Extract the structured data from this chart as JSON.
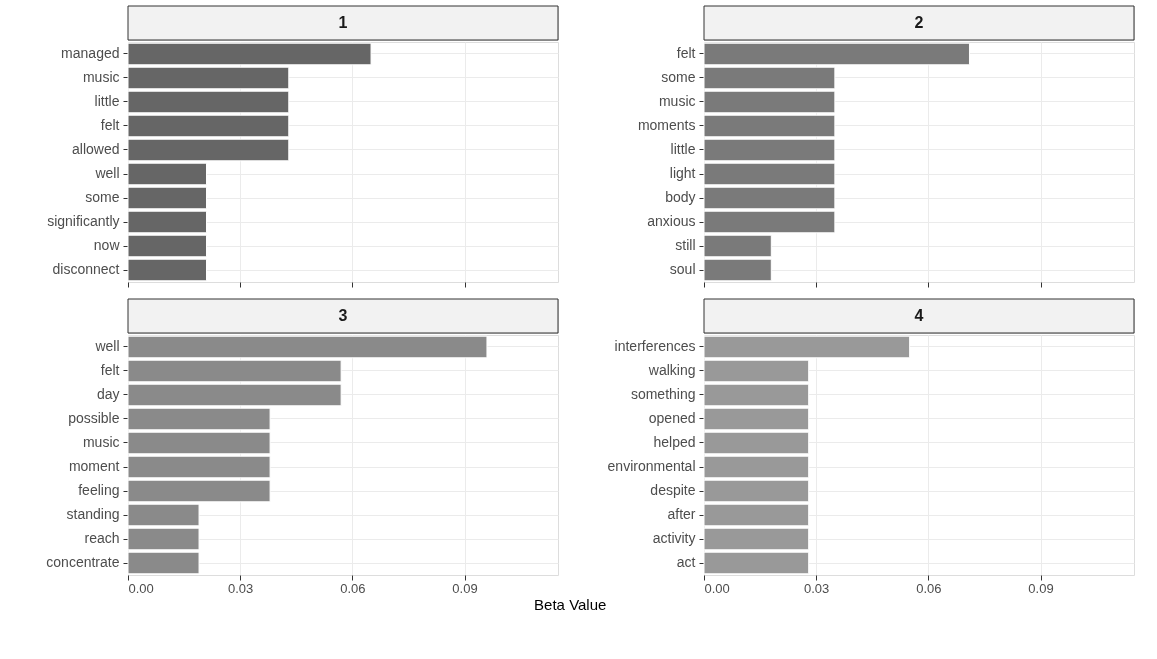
{
  "chart_data": [
    {
      "type": "bar",
      "orientation": "horizontal",
      "title": "1",
      "categories": [
        "managed",
        "music",
        "little",
        "felt",
        "allowed",
        "well",
        "some",
        "significantly",
        "now",
        "disconnect"
      ],
      "values": [
        0.065,
        0.043,
        0.043,
        0.043,
        0.043,
        0.021,
        0.021,
        0.021,
        0.021,
        0.021
      ],
      "color": "#666666",
      "xlim": [
        0,
        0.115
      ],
      "xticks": [
        0,
        0.03,
        0.06,
        0.09
      ],
      "grid": true,
      "tick_labels": "y"
    },
    {
      "type": "bar",
      "orientation": "horizontal",
      "title": "2",
      "categories": [
        "felt",
        "some",
        "music",
        "moments",
        "little",
        "light",
        "body",
        "anxious",
        "still",
        "soul"
      ],
      "values": [
        0.071,
        0.035,
        0.035,
        0.035,
        0.035,
        0.035,
        0.035,
        0.035,
        0.018,
        0.018
      ],
      "color": "#7a7a7a",
      "xlim": [
        0,
        0.115
      ],
      "xticks": [
        0,
        0.03,
        0.06,
        0.09
      ],
      "grid": true,
      "tick_labels": "y"
    },
    {
      "type": "bar",
      "orientation": "horizontal",
      "title": "3",
      "xlabel": "Beta Value",
      "categories": [
        "well",
        "felt",
        "day",
        "possible",
        "music",
        "moment",
        "feeling",
        "standing",
        "reach",
        "concentrate"
      ],
      "values": [
        0.096,
        0.057,
        0.057,
        0.038,
        0.038,
        0.038,
        0.038,
        0.019,
        0.019,
        0.019
      ],
      "color": "#8a8a8a",
      "xlim": [
        0,
        0.115
      ],
      "xticks": [
        {
          "value": 0,
          "label": "0.00"
        },
        {
          "value": 0.03,
          "label": "0.03"
        },
        {
          "value": 0.06,
          "label": "0.06"
        },
        {
          "value": 0.09,
          "label": "0.09"
        }
      ],
      "grid": true
    },
    {
      "type": "bar",
      "orientation": "horizontal",
      "title": "4",
      "categories": [
        "interferences",
        "walking",
        "something",
        "opened",
        "helped",
        "environmental",
        "despite",
        "after",
        "activity",
        "act"
      ],
      "values": [
        0.055,
        0.028,
        0.028,
        0.028,
        0.028,
        0.028,
        0.028,
        0.028,
        0.028,
        0.028
      ],
      "color": "#999999",
      "xlim": [
        0,
        0.115
      ],
      "xticks": [
        {
          "value": 0,
          "label": "0.00"
        },
        {
          "value": 0.03,
          "label": "0.03"
        },
        {
          "value": 0.06,
          "label": "0.06"
        },
        {
          "value": 0.09,
          "label": "0.09"
        }
      ],
      "grid": true
    }
  ]
}
